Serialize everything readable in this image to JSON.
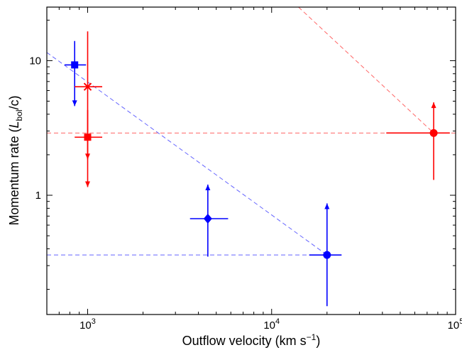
{
  "chart_data": {
    "type": "scatter",
    "xlabel": "Outflow velocity (km s−1)",
    "ylabel": "Momentum rate (Lbol/c)",
    "xlabel_parts": {
      "main": "Outflow velocity (km s",
      "sup": "−1",
      "tail": ")"
    },
    "ylabel_parts": {
      "main": "Momentum rate (",
      "L": "L",
      "sub": "bol",
      "tail": "/c)"
    },
    "xscale": "log",
    "yscale": "log",
    "xlim": [
      600,
      100000
    ],
    "ylim": [
      0.13,
      25
    ],
    "grid": false,
    "x_ticks": [
      {
        "value": 1000,
        "base": "10",
        "exp": "3"
      },
      {
        "value": 10000,
        "base": "10",
        "exp": "4"
      },
      {
        "value": 100000,
        "base": "10",
        "exp": "5"
      }
    ],
    "y_ticks": [
      {
        "value": 1,
        "label": "1"
      },
      {
        "value": 10,
        "label": "10"
      }
    ],
    "points": [
      {
        "x": 850,
        "y": 9.3,
        "marker": "square",
        "color": "#0000ff",
        "xerr": [
          750,
          980
        ],
        "yerr": [
          null,
          14
        ],
        "arrow": "down",
        "arrow_to": 4.6
      },
      {
        "x": 1000,
        "y": 6.4,
        "marker": "x",
        "color": "#ff0000",
        "xerr": [
          850,
          1200
        ],
        "yerr": [
          null,
          16.5
        ],
        "arrow": "down",
        "arrow_to": 1.15
      },
      {
        "x": 1000,
        "y": 2.7,
        "marker": "square",
        "color": "#ff0000",
        "xerr": [
          850,
          1200
        ],
        "yerr": [
          null,
          4.3
        ],
        "arrow": "down",
        "arrow_to": 1.85
      },
      {
        "x": 4500,
        "y": 0.67,
        "marker": "diamond",
        "color": "#0000ff",
        "xerr": [
          3600,
          5800
        ],
        "yerr": [
          0.35,
          null
        ],
        "arrow": "up",
        "arrow_to": 1.2
      },
      {
        "x": 20000,
        "y": 0.36,
        "marker": "circle",
        "color": "#0000ff",
        "xerr": [
          16000,
          24000
        ],
        "yerr": [
          0.15,
          null
        ],
        "arrow": "up",
        "arrow_to": 0.87
      },
      {
        "x": 76000,
        "y": 2.9,
        "marker": "circle",
        "color": "#ff0000",
        "xerr": [
          42000,
          93000
        ],
        "yerr": [
          1.3,
          null
        ],
        "arrow": "up",
        "arrow_to": 4.9
      }
    ],
    "reference_lines": [
      {
        "color": "#6666ff",
        "points": [
          [
            600,
            11.5
          ],
          [
            20000,
            0.36
          ]
        ]
      },
      {
        "color": "#6666ff",
        "points": [
          [
            600,
            0.36
          ],
          [
            20000,
            0.36
          ]
        ]
      },
      {
        "color": "#ff6666",
        "points": [
          [
            600,
            2.9
          ],
          [
            100000,
            2.9
          ]
        ]
      },
      {
        "color": "#ff6666",
        "points": [
          [
            14000,
            25
          ],
          [
            76000,
            2.9
          ]
        ]
      }
    ]
  }
}
